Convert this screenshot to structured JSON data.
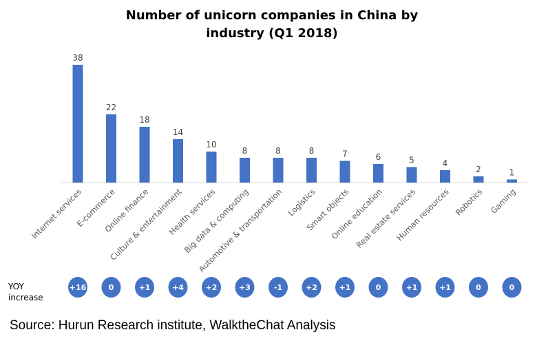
{
  "chart_data": {
    "type": "bar",
    "title": [
      "Number of unicorn companies in China by",
      "industry (Q1 2018)"
    ],
    "categories": [
      "Internet services",
      "E-commerce",
      "Online finance",
      "Culture & entertainment",
      "Health services",
      "Big data & computing",
      "Automotive & transportation",
      "Logistics",
      "Smart objects",
      "Online education",
      "Real estate services",
      "Human resources",
      "Robotics",
      "Gaming"
    ],
    "values": [
      38,
      22,
      18,
      14,
      10,
      8,
      8,
      8,
      7,
      6,
      5,
      4,
      2,
      1
    ],
    "ylim": [
      0,
      38
    ],
    "grid": false,
    "bar_color": "#4472C4",
    "yoy_label": [
      "YOY",
      "increase"
    ],
    "yoy_values": [
      "+16",
      "0",
      "+1",
      "+4",
      "+2",
      "+3",
      "-1",
      "+2",
      "+1",
      "0",
      "+1",
      "+1",
      "0",
      "0"
    ],
    "source": "Source: Hurun Research institute, WalktheChat Analysis"
  }
}
